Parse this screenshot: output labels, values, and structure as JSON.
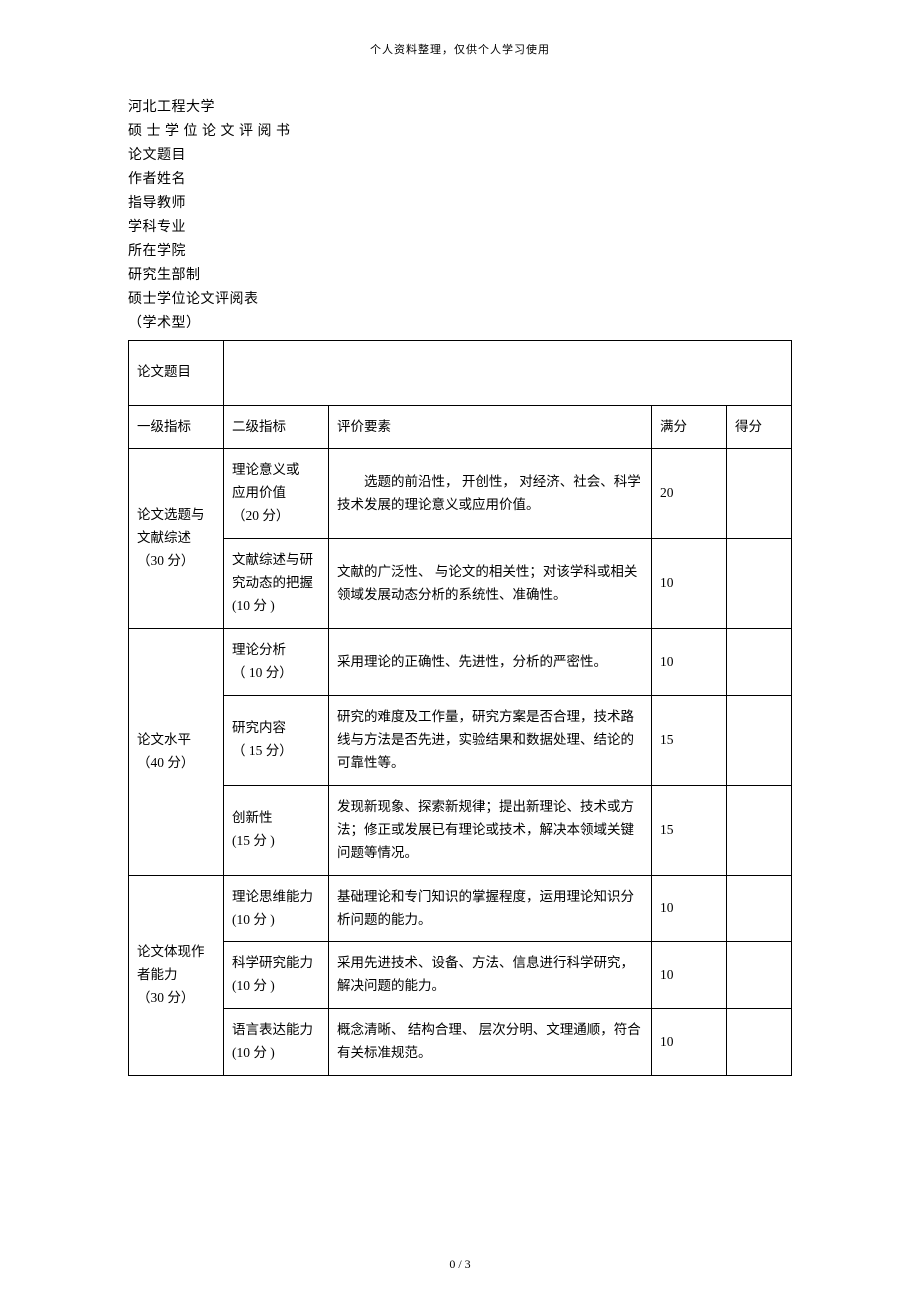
{
  "header_note": "个人资料整理，仅供个人学习使用",
  "meta": {
    "university": "河北工程大学",
    "doc_type": "硕 士 学 位 论 文 评 阅 书",
    "thesis_title_label": "论文题目",
    "author_label": "作者姓名",
    "advisor_label": "指导教师",
    "major_label": "学科专业",
    "school_label": "所在学院",
    "made_by": "研究生部制",
    "table_title": "硕士学位论文评阅表",
    "type_note": "（学术型）"
  },
  "table": {
    "title_label": "论文题目",
    "headers": {
      "c1": "一级指标",
      "c2": "二级指标",
      "c3": "评价要素",
      "c4": "满分",
      "c5": "得分"
    },
    "sections": [
      {
        "l1": "论文选题与\n文献综述\n（30 分）",
        "rows": [
          {
            "l2": "理论意义或\n应用价值\n（20 分）",
            "eval": "选题的前沿性， 开创性， 对经济、社会、科学技术发展的理论意义或应用价值。",
            "full": "20",
            "score": ""
          },
          {
            "l2": "文献综述与研究动态的把握\n(10 分 )",
            "eval": "文献的广泛性、 与论文的相关性；对该学科或相关领域发展动态分析的系统性、准确性。",
            "full": "10",
            "score": ""
          }
        ]
      },
      {
        "l1": "论文水平\n（40 分）",
        "rows": [
          {
            "l2": "理论分析\n（ 10 分）",
            "eval": "采用理论的正确性、先进性，分析的严密性。",
            "full": "10",
            "score": ""
          },
          {
            "l2": "研究内容\n（ 15 分）",
            "eval": "研究的难度及工作量，研究方案是否合理，技术路线与方法是否先进，实验结果和数据处理、结论的可靠性等。",
            "full": "15",
            "score": ""
          },
          {
            "l2": "创新性\n(15 分 )",
            "eval": "发现新现象、探索新规律；提出新理论、技术或方法；修正或发展已有理论或技术，解决本领域关键问题等情况。",
            "full": "15",
            "score": ""
          }
        ]
      },
      {
        "l1": "论文体现作者能力\n（30 分）",
        "rows": [
          {
            "l2": "理论思维能力\n(10 分 )",
            "eval": "基础理论和专门知识的掌握程度，运用理论知识分析问题的能力。",
            "full": "10",
            "score": ""
          },
          {
            "l2": "科学研究能力\n(10 分 )",
            "eval": "采用先进技术、设备、方法、信息进行科学研究，解决问题的能力。",
            "full": "10",
            "score": ""
          },
          {
            "l2": "语言表达能力\n(10 分 )",
            "eval": "概念清晰、 结构合理、 层次分明、文理通顺，符合有关标准规范。",
            "full": "10",
            "score": ""
          }
        ]
      }
    ]
  },
  "footer": "0 / 3"
}
